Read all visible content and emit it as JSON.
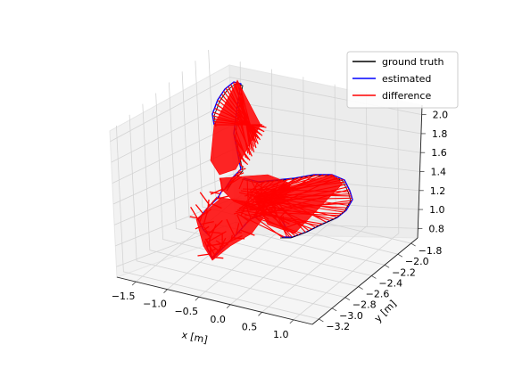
{
  "chart_data": {
    "type": "line",
    "projection": "3d",
    "title": "",
    "xlabel": "x [m]",
    "ylabel": "y [m]",
    "zlabel": "",
    "xlim": [
      -1.8,
      1.3
    ],
    "ylim": [
      -3.3,
      -1.7
    ],
    "zlim": [
      0.7,
      2.1
    ],
    "xticks": [
      "−1.5",
      "−1.0",
      "−0.5",
      "0.0",
      "0.5",
      "1.0"
    ],
    "yticks": [
      "−3.2",
      "−3.0",
      "−2.8",
      "−2.6",
      "−2.4",
      "−2.2",
      "−2.0",
      "−1.8"
    ],
    "zticks": [
      "0.8",
      "1.0",
      "1.2",
      "1.4",
      "1.6",
      "1.8",
      "2.0"
    ],
    "grid": true,
    "legend_position": "top-right",
    "series": [
      {
        "name": "ground truth",
        "color": "#000000"
      },
      {
        "name": "estimated",
        "color": "#0000ff"
      },
      {
        "name": "difference",
        "color": "#ff0000"
      }
    ]
  }
}
